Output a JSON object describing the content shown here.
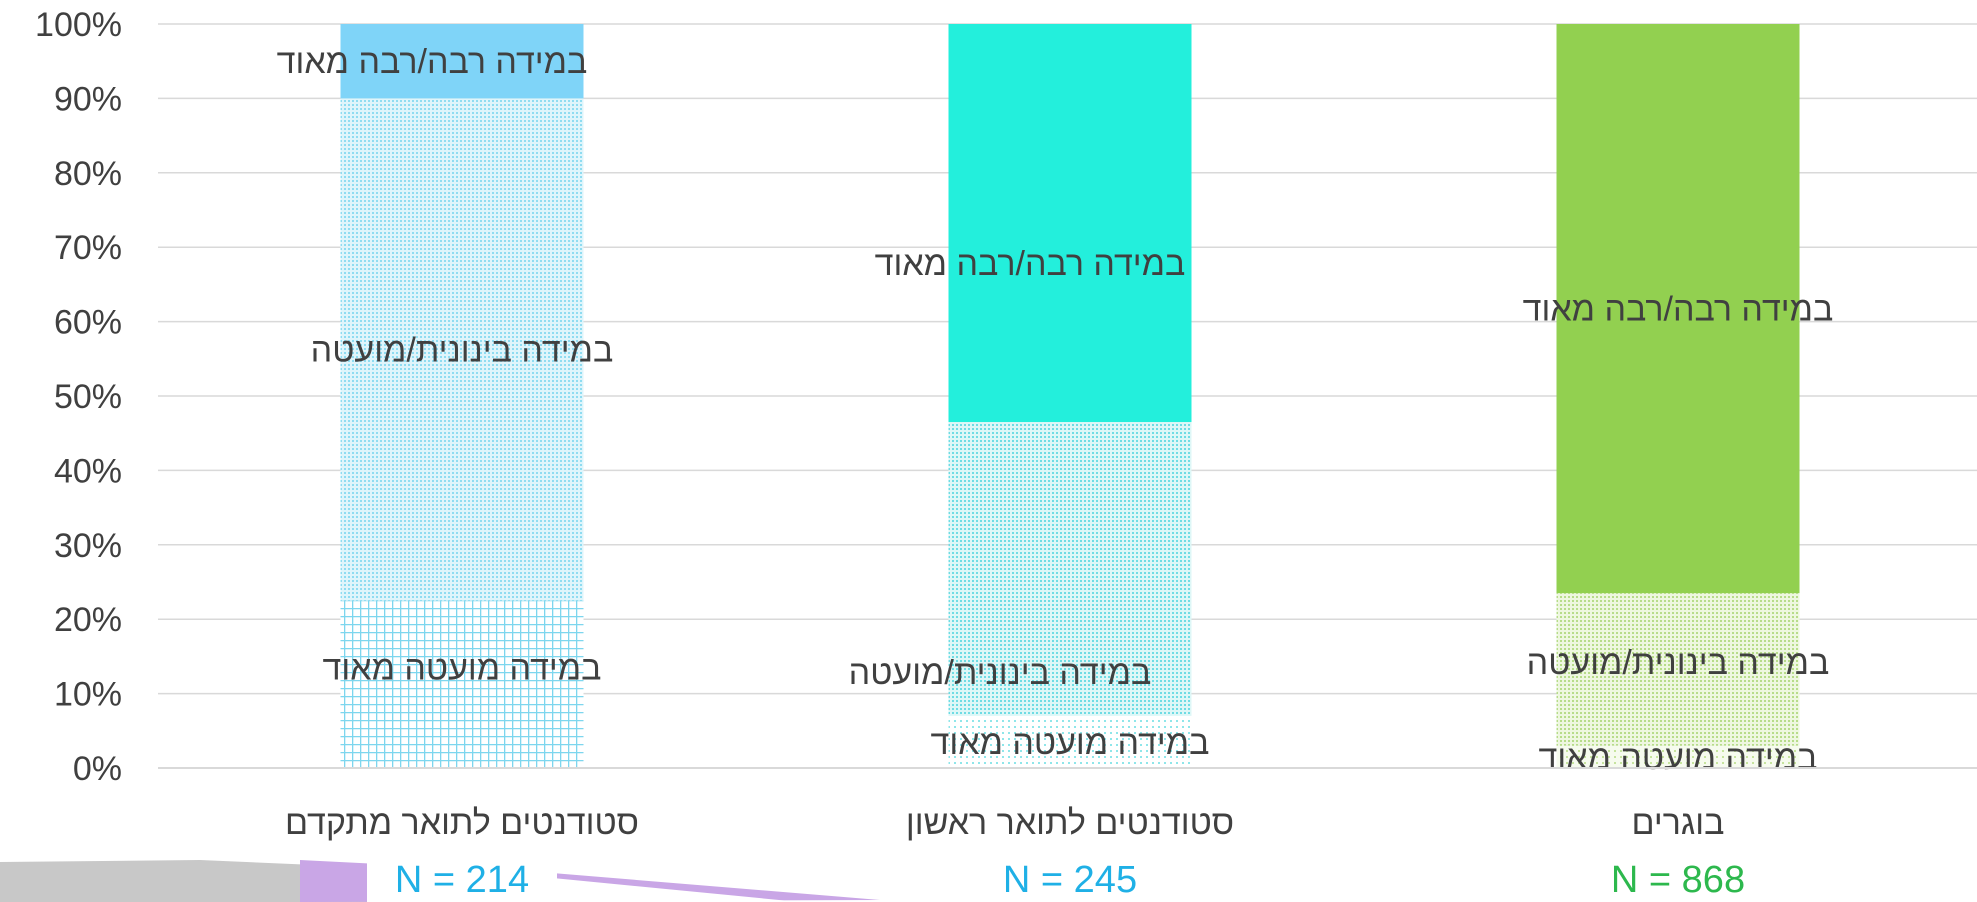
{
  "chart_data": {
    "type": "bar",
    "stacked": true,
    "percent": true,
    "categories": [
      "סטודנטים לתואר מתקדם",
      "סטודנטים לתואר ראשון",
      "בוגרים"
    ],
    "sample_sizes": [
      "N = 214",
      "N = 245",
      "N = 868"
    ],
    "sample_size_colors": [
      "#1fb0e6",
      "#1fb0e6",
      "#2db84d"
    ],
    "series": [
      {
        "name": "במידה מועטה מאוד",
        "values": [
          22.5,
          7,
          3
        ]
      },
      {
        "name": "במידה בינונית/מועטה",
        "values": [
          67.5,
          39.5,
          20.5
        ]
      },
      {
        "name": "במידה רבה/רבה מאוד",
        "values": [
          10,
          53.5,
          76.5
        ]
      }
    ],
    "bar_colors": [
      "#7dd6ee",
      "#23efdc",
      "#92d050"
    ],
    "top_colors": [
      "#7fd4f8",
      "#23efdc",
      "#92d050"
    ],
    "yticks": [
      "0%",
      "10%",
      "20%",
      "30%",
      "40%",
      "50%",
      "60%",
      "70%",
      "80%",
      "90%",
      "100%"
    ],
    "ylim": [
      0,
      100
    ],
    "grid": true,
    "legend": "none"
  }
}
